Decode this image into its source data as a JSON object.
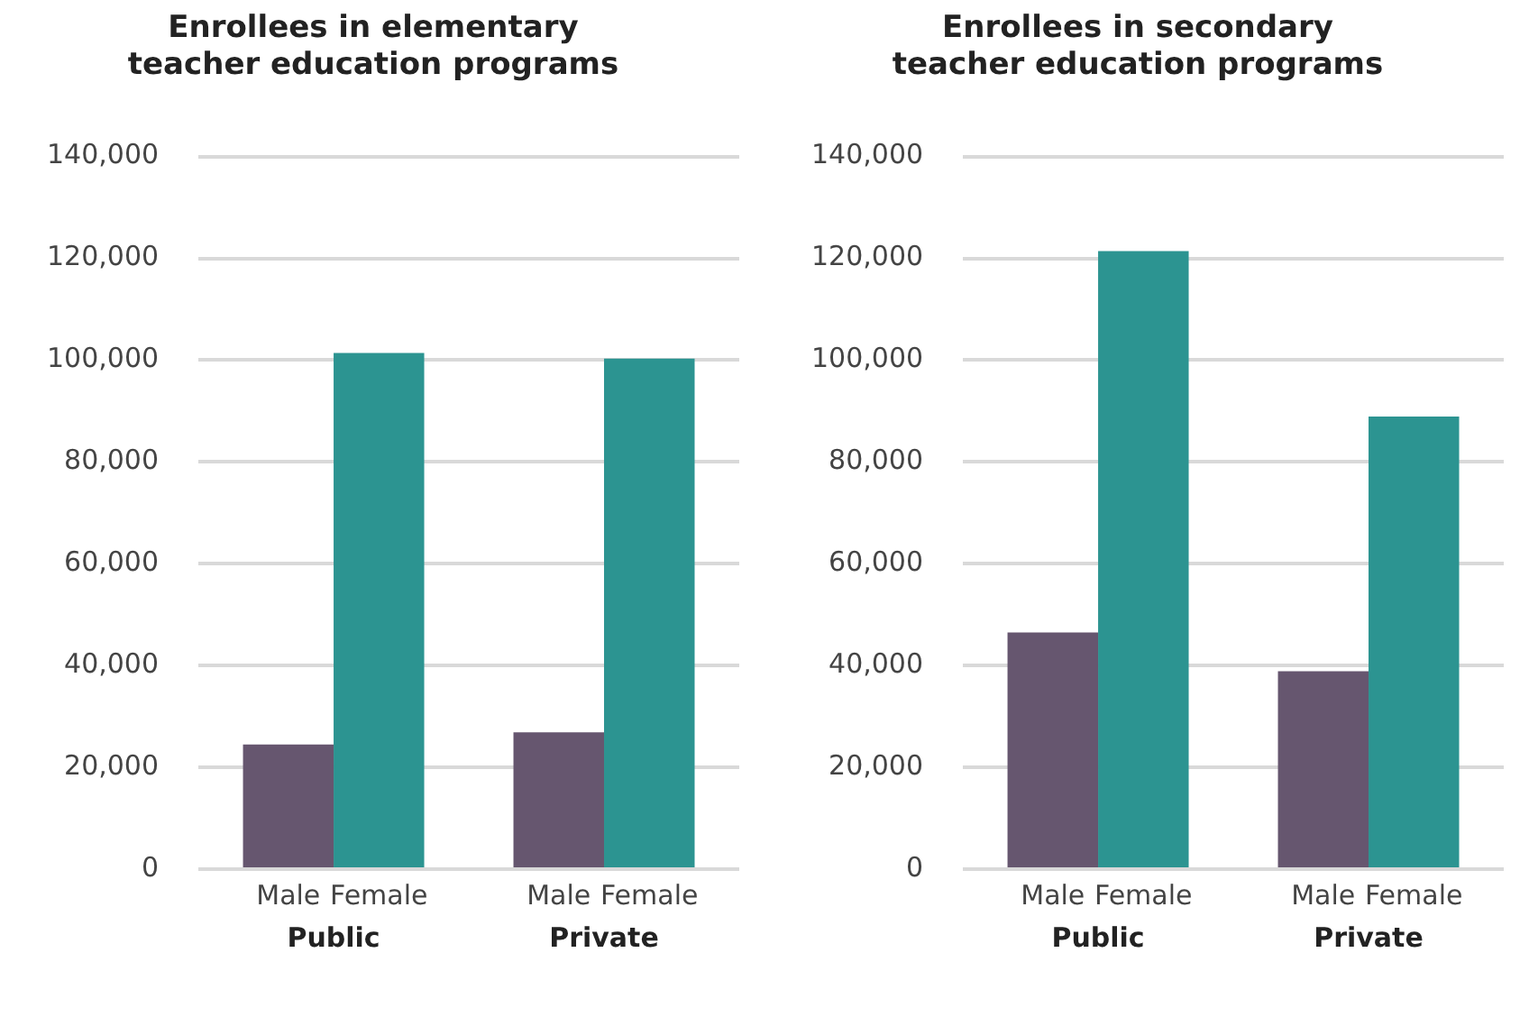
{
  "chart_data": [
    {
      "type": "bar",
      "title": "Enrollees in elementary\nteacher education programs",
      "categories": [
        "Public",
        "Private"
      ],
      "series": [
        {
          "name": "Male",
          "color": "#66566f",
          "values": [
            24500,
            26900
          ]
        },
        {
          "name": "Female",
          "color": "#2c9491",
          "values": [
            101400,
            100300
          ]
        }
      ],
      "ylim": [
        0,
        140000
      ],
      "yticks": [
        {
          "value": 0,
          "label": "0"
        },
        {
          "value": 20000,
          "label": "20,000"
        },
        {
          "value": 40000,
          "label": "40,000"
        },
        {
          "value": 60000,
          "label": "60,000"
        },
        {
          "value": 80000,
          "label": "80,000"
        },
        {
          "value": 100000,
          "label": "100,000"
        },
        {
          "value": 120000,
          "label": "120,000"
        },
        {
          "value": 140000,
          "label": "140,000"
        }
      ],
      "grid": "y"
    },
    {
      "type": "bar",
      "title": "Enrollees in secondary\nteacher education programs",
      "categories": [
        "Public",
        "Private"
      ],
      "series": [
        {
          "name": "Male",
          "color": "#66566f",
          "values": [
            46500,
            38900
          ]
        },
        {
          "name": "Female",
          "color": "#2c9491",
          "values": [
            121400,
            88900
          ]
        }
      ],
      "ylim": [
        0,
        140000
      ],
      "yticks": [
        {
          "value": 0,
          "label": "0"
        },
        {
          "value": 20000,
          "label": "20,000"
        },
        {
          "value": 40000,
          "label": "40,000"
        },
        {
          "value": 60000,
          "label": "60,000"
        },
        {
          "value": 80000,
          "label": "80,000"
        },
        {
          "value": 100000,
          "label": "100,000"
        },
        {
          "value": 120000,
          "label": "120,000"
        },
        {
          "value": 140000,
          "label": "140,000"
        }
      ],
      "grid": "y"
    }
  ]
}
